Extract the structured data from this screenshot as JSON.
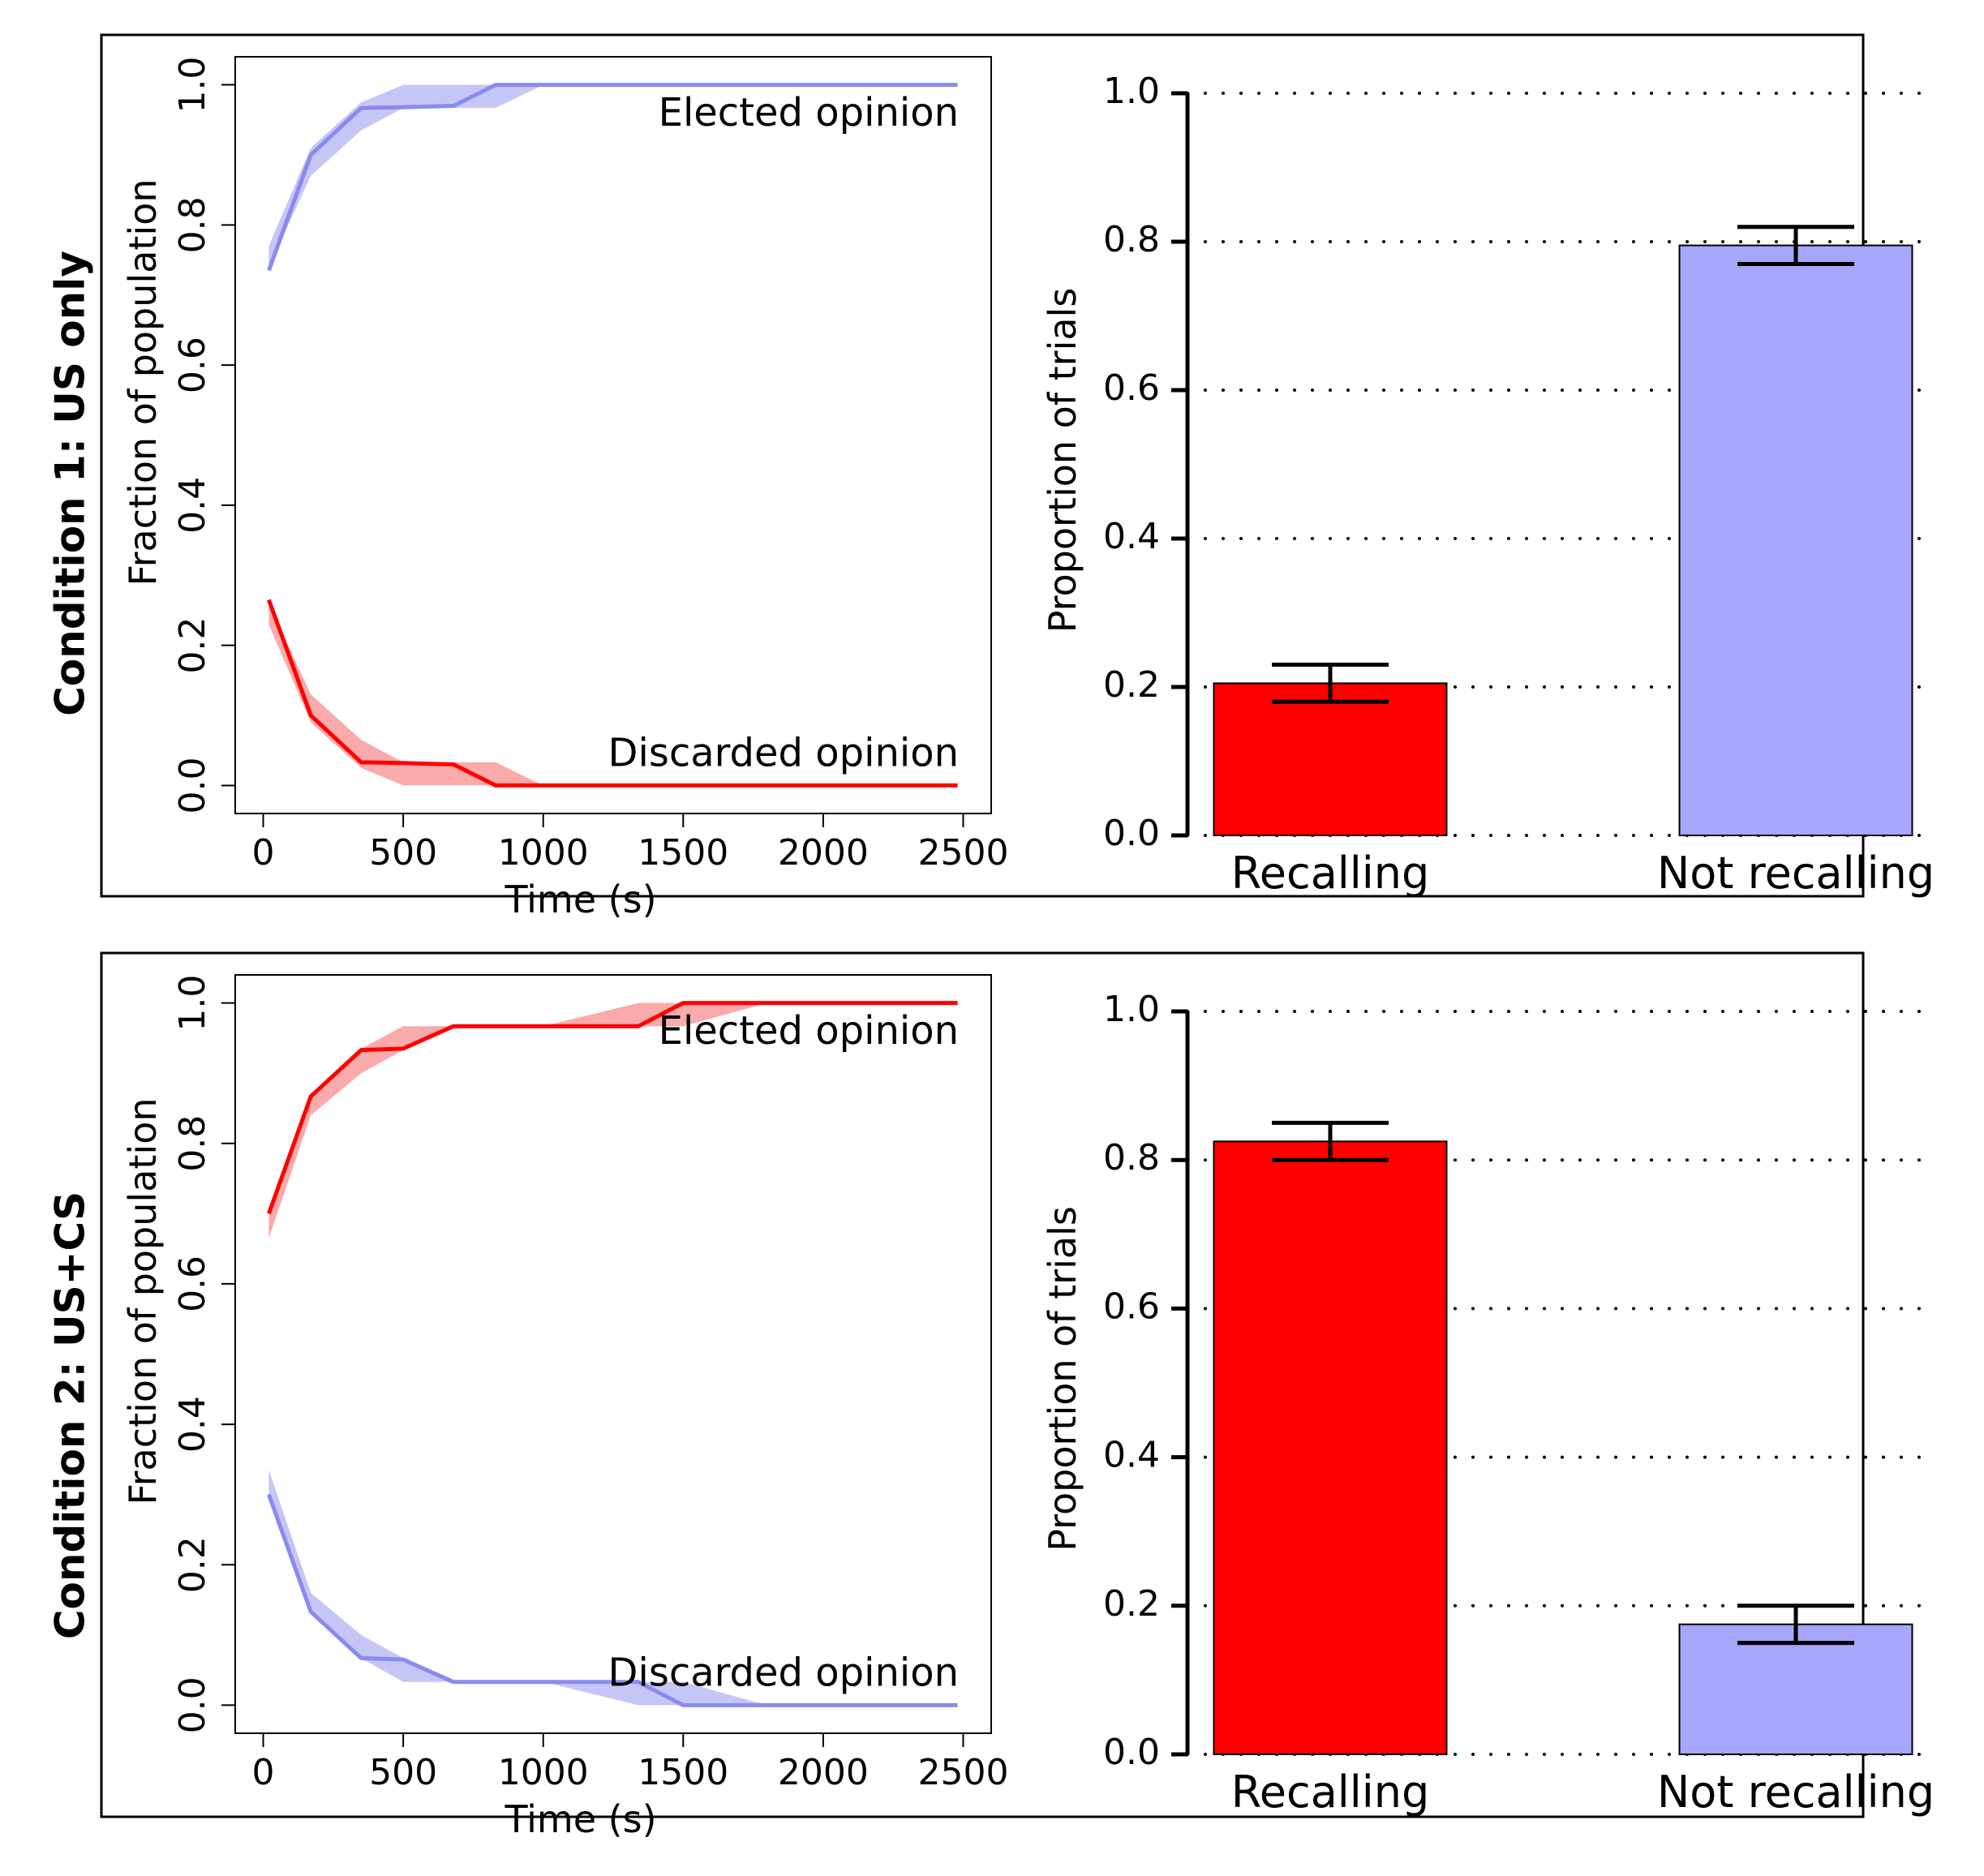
{
  "colors": {
    "red": "#ff0000",
    "red_band": "#f9aaaa",
    "blue_line": "#8a8aee",
    "blue_band": "#c6c6f6",
    "blue_bar": "#a6a6fa",
    "axis": "#000000"
  },
  "rows": [
    {
      "condition_label": "Condition 1: US only",
      "line_chart": {
        "type": "line",
        "xlabel": "Time (s)",
        "ylabel": "Fraction of population",
        "xticks": [
          "0",
          "500",
          "1000",
          "1500",
          "2000",
          "2500"
        ],
        "yticks": [
          "0.0",
          "0.2",
          "0.4",
          "0.6",
          "0.8",
          "1.0"
        ],
        "xlim": [
          -100,
          2600
        ],
        "ylim": [
          -0.04,
          1.04
        ],
        "annotations": {
          "elected": "Elected opinion",
          "discarded": "Discarded opinion"
        },
        "series": [
          {
            "name": "Elected opinion",
            "color": "blue",
            "x": [
              20,
              170,
              350,
              500,
              680,
              830,
              1000,
              2480
            ],
            "y": [
              0.735,
              0.9,
              0.967,
              0.968,
              0.97,
              1.0,
              1.0,
              1.0
            ],
            "band_upper": [
              0.77,
              0.91,
              0.975,
              1.0,
              1.0,
              1.0,
              1.0,
              1.0
            ],
            "band_lower": [
              0.74,
              0.87,
              0.935,
              0.967,
              0.967,
              0.967,
              1.0,
              1.0
            ]
          },
          {
            "name": "Discarded opinion",
            "color": "red",
            "x": [
              20,
              170,
              350,
              500,
              680,
              830,
              1000,
              2480
            ],
            "y": [
              0.265,
              0.1,
              0.033,
              0.032,
              0.03,
              0.0,
              0.0,
              0.0
            ],
            "band_upper": [
              0.26,
              0.13,
              0.065,
              0.033,
              0.033,
              0.033,
              0.0,
              0.0
            ],
            "band_lower": [
              0.23,
              0.09,
              0.025,
              0.0,
              0.0,
              0.0,
              0.0,
              0.0
            ]
          }
        ]
      },
      "bar_chart": {
        "type": "bar",
        "ylabel": "Proportion of trials",
        "categories": [
          "Recalling",
          "Not recalling"
        ],
        "values": [
          0.205,
          0.795
        ],
        "error_low": [
          0.18,
          0.77
        ],
        "error_high": [
          0.23,
          0.82
        ],
        "bar_colors": [
          "red",
          "blue_bar"
        ],
        "yticks": [
          "0.0",
          "0.2",
          "0.4",
          "0.6",
          "0.8",
          "1.0"
        ],
        "ylim": [
          0,
          1
        ],
        "grid": "dotted horizontal"
      }
    },
    {
      "condition_label": "Condition 2: US+CS",
      "line_chart": {
        "type": "line",
        "xlabel": "Time (s)",
        "ylabel": "Fraction of population",
        "xticks": [
          "0",
          "500",
          "1000",
          "1500",
          "2000",
          "2500"
        ],
        "yticks": [
          "0.0",
          "0.2",
          "0.4",
          "0.6",
          "0.8",
          "1.0"
        ],
        "xlim": [
          -100,
          2600
        ],
        "ylim": [
          -0.04,
          1.04
        ],
        "annotations": {
          "elected": "Elected opinion",
          "discarded": "Discarded opinion"
        },
        "series": [
          {
            "name": "Elected opinion",
            "color": "red",
            "x": [
              20,
              170,
              350,
              500,
              680,
              830,
              1000,
              1340,
              1500,
              1800,
              2480
            ],
            "y": [
              0.7,
              0.867,
              0.933,
              0.935,
              0.967,
              0.967,
              0.967,
              0.967,
              1.0,
              1.0,
              1.0
            ],
            "band_upper": [
              0.7,
              0.867,
              0.935,
              0.967,
              0.967,
              0.967,
              0.967,
              1.0,
              1.0,
              1.0,
              1.0
            ],
            "band_lower": [
              0.665,
              0.84,
              0.9,
              0.933,
              0.967,
              0.967,
              0.967,
              0.967,
              0.967,
              1.0,
              1.0
            ]
          },
          {
            "name": "Discarded opinion",
            "color": "blue",
            "x": [
              20,
              170,
              350,
              500,
              680,
              830,
              1000,
              1340,
              1500,
              1800,
              2480
            ],
            "y": [
              0.3,
              0.133,
              0.067,
              0.065,
              0.033,
              0.033,
              0.033,
              0.033,
              0.0,
              0.0,
              0.0
            ],
            "band_upper": [
              0.335,
              0.16,
              0.1,
              0.067,
              0.033,
              0.033,
              0.033,
              0.033,
              0.033,
              0.0,
              0.0
            ],
            "band_lower": [
              0.3,
              0.133,
              0.067,
              0.033,
              0.033,
              0.033,
              0.033,
              0.0,
              0.0,
              0.0,
              0.0
            ]
          }
        ]
      },
      "bar_chart": {
        "type": "bar",
        "ylabel": "Proportion of trials",
        "categories": [
          "Recalling",
          "Not recalling"
        ],
        "values": [
          0.825,
          0.175
        ],
        "error_low": [
          0.8,
          0.15
        ],
        "error_high": [
          0.85,
          0.2
        ],
        "bar_colors": [
          "red",
          "blue_bar"
        ],
        "yticks": [
          "0.0",
          "0.2",
          "0.4",
          "0.6",
          "0.8",
          "1.0"
        ],
        "ylim": [
          0,
          1
        ],
        "grid": "dotted horizontal"
      }
    }
  ]
}
